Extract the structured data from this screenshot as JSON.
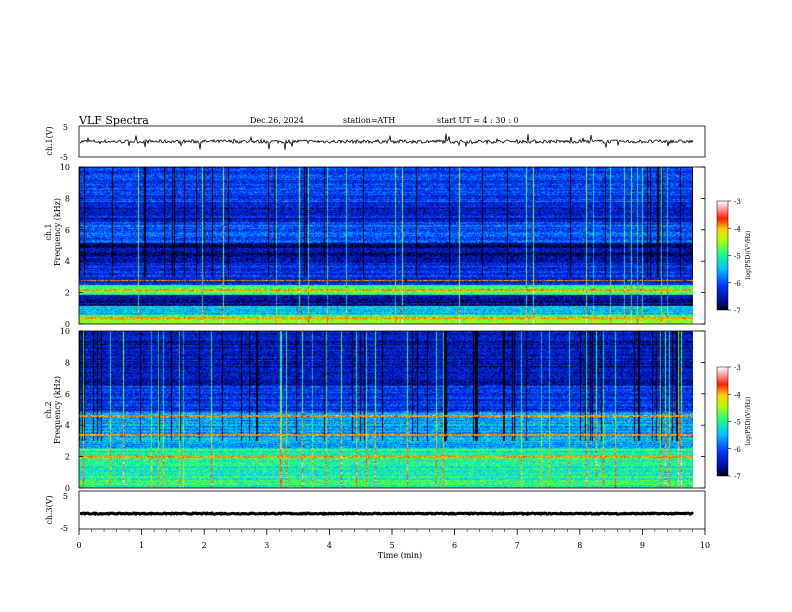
{
  "header": {
    "title": "VLF  Spectra",
    "date": "Dec.26, 2024",
    "station": "station=ATH",
    "start_ut": "start  UT  =   4  : 30 : 0"
  },
  "chart_data": [
    {
      "type": "line",
      "panel": "ch1-waveform",
      "ylabel": "ch.1(V)",
      "y_ticks": [
        "5",
        "-5"
      ],
      "ylim": [
        -5,
        5
      ],
      "xlim": [
        0,
        10
      ],
      "description_values": {
        "baseline": 0.0,
        "noise_amplitude": 0.6,
        "spike_amplitude": 2.5
      }
    },
    {
      "type": "heatmap",
      "panel": "ch1-spectrogram",
      "ylabel": "ch.1\nFrequency  (kHz)",
      "y_ticks": [
        "0",
        "2",
        "4",
        "6",
        "8",
        "10"
      ],
      "ylim": [
        0,
        10
      ],
      "xlim": [
        0,
        9.8
      ],
      "colorbar": {
        "label": "log(PSD)(V²/Hz)",
        "ticks": [
          "-3",
          "-4",
          "-5",
          "-6",
          "-7"
        ],
        "range": [
          -7,
          -3
        ]
      },
      "bands": [
        {
          "from_khz": 0.0,
          "to_khz": 0.6,
          "log_psd": -4.6
        },
        {
          "from_khz": 0.6,
          "to_khz": 1.2,
          "log_psd": -5.5
        },
        {
          "from_khz": 1.2,
          "to_khz": 1.9,
          "log_psd": -6.6
        },
        {
          "from_khz": 1.9,
          "to_khz": 2.5,
          "log_psd": -4.9
        },
        {
          "from_khz": 2.5,
          "to_khz": 4.0,
          "log_psd": -6.3
        },
        {
          "from_khz": 4.0,
          "to_khz": 5.2,
          "log_psd": -6.7
        },
        {
          "from_khz": 5.2,
          "to_khz": 6.5,
          "log_psd": -6.0
        },
        {
          "from_khz": 6.5,
          "to_khz": 7.8,
          "log_psd": -6.4
        },
        {
          "from_khz": 7.8,
          "to_khz": 10.0,
          "log_psd": -6.1
        }
      ],
      "lines_khz": [
        0.4,
        2.2,
        2.8
      ]
    },
    {
      "type": "heatmap",
      "panel": "ch2-spectrogram",
      "ylabel": "ch.2\nFrequency  (kHz)",
      "y_ticks": [
        "0",
        "2",
        "4",
        "6",
        "8",
        "10"
      ],
      "ylim": [
        0,
        10
      ],
      "xlim": [
        0,
        9.8
      ],
      "colorbar": {
        "label": "log(PSD)(V²/Hz)",
        "ticks": [
          "-3",
          "-4",
          "-5",
          "-6",
          "-7"
        ],
        "range": [
          -7,
          -3
        ]
      },
      "bands": [
        {
          "from_khz": 0.0,
          "to_khz": 1.2,
          "log_psd": -5.0
        },
        {
          "from_khz": 1.2,
          "to_khz": 2.6,
          "log_psd": -5.0
        },
        {
          "from_khz": 2.6,
          "to_khz": 4.9,
          "log_psd": -5.6
        },
        {
          "from_khz": 4.9,
          "to_khz": 6.5,
          "log_psd": -6.2
        },
        {
          "from_khz": 6.5,
          "to_khz": 10.0,
          "log_psd": -6.5
        }
      ],
      "lines_khz": [
        2.0,
        3.4,
        4.6
      ]
    },
    {
      "type": "line",
      "panel": "ch3-waveform",
      "ylabel": "ch.3(V)",
      "y_ticks": [
        "5",
        "-5"
      ],
      "ylim": [
        -5,
        5
      ],
      "xlim": [
        0,
        10
      ],
      "x_ticks": [
        "0",
        "1",
        "2",
        "3",
        "4",
        "5",
        "6",
        "7",
        "8",
        "9",
        "10"
      ],
      "xlabel": "Time  (min)",
      "description_values": {
        "baseline": -1.0,
        "noise_amplitude": 0.15
      }
    }
  ]
}
